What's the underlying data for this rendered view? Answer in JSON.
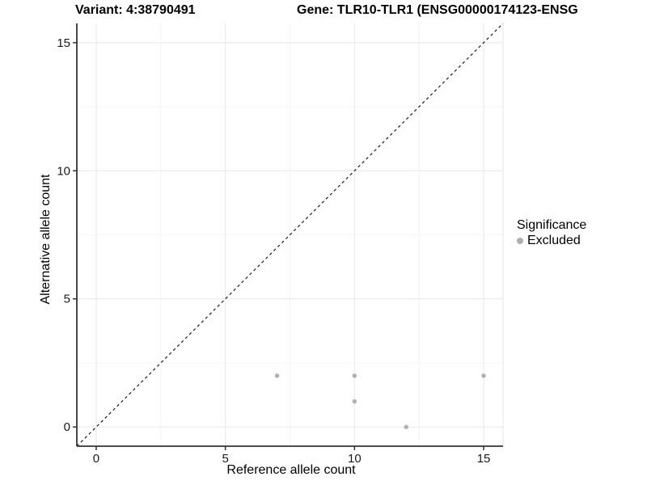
{
  "title": {
    "variant": "Variant: 4:38790491",
    "gene": "Gene: TLR10-TLR1 (ENSG00000174123-ENSG"
  },
  "axes": {
    "x_label": "Reference allele count",
    "y_label": "Alternative allele count"
  },
  "legend": {
    "title": "Significance",
    "entries": [
      {
        "label": "Excluded",
        "color": "#b0b0b0",
        "marker": "circle"
      }
    ]
  },
  "chart_data": {
    "type": "scatter",
    "title": "Variant: 4:38790491 | Gene: TLR10-TLR1 (ENSG00000174123-ENSG",
    "xlabel": "Reference allele count",
    "ylabel": "Alternative allele count",
    "xlim": [
      -0.75,
      15.75
    ],
    "ylim": [
      -0.75,
      15.75
    ],
    "x_ticks": [
      0,
      5,
      10,
      15
    ],
    "y_ticks": [
      0,
      5,
      10,
      15
    ],
    "x_minor_ticks": [
      2.5,
      7.5,
      12.5
    ],
    "y_minor_ticks": [
      2.5,
      7.5,
      12.5
    ],
    "grid": "major+minor",
    "legend_title": "Significance",
    "legend_position": "right",
    "reference_line": {
      "type": "identity",
      "style": "dashed",
      "from": [
        -0.75,
        -0.75
      ],
      "to": [
        15.75,
        15.75
      ],
      "color": "#1a1a1a"
    },
    "series": [
      {
        "name": "Excluded",
        "color": "#b0b0b0",
        "points": [
          {
            "x": 7,
            "y": 2
          },
          {
            "x": 10,
            "y": 2
          },
          {
            "x": 10,
            "y": 1
          },
          {
            "x": 12,
            "y": 0
          },
          {
            "x": 15,
            "y": 2
          }
        ]
      }
    ]
  },
  "colors": {
    "point": "#b0b0b0",
    "grid_major": "#e7e7e7",
    "grid_minor": "#f3f3f3",
    "axis_line": "#333333",
    "tick_text": "#1a1a1a",
    "reference_line": "#1a1a1a"
  }
}
